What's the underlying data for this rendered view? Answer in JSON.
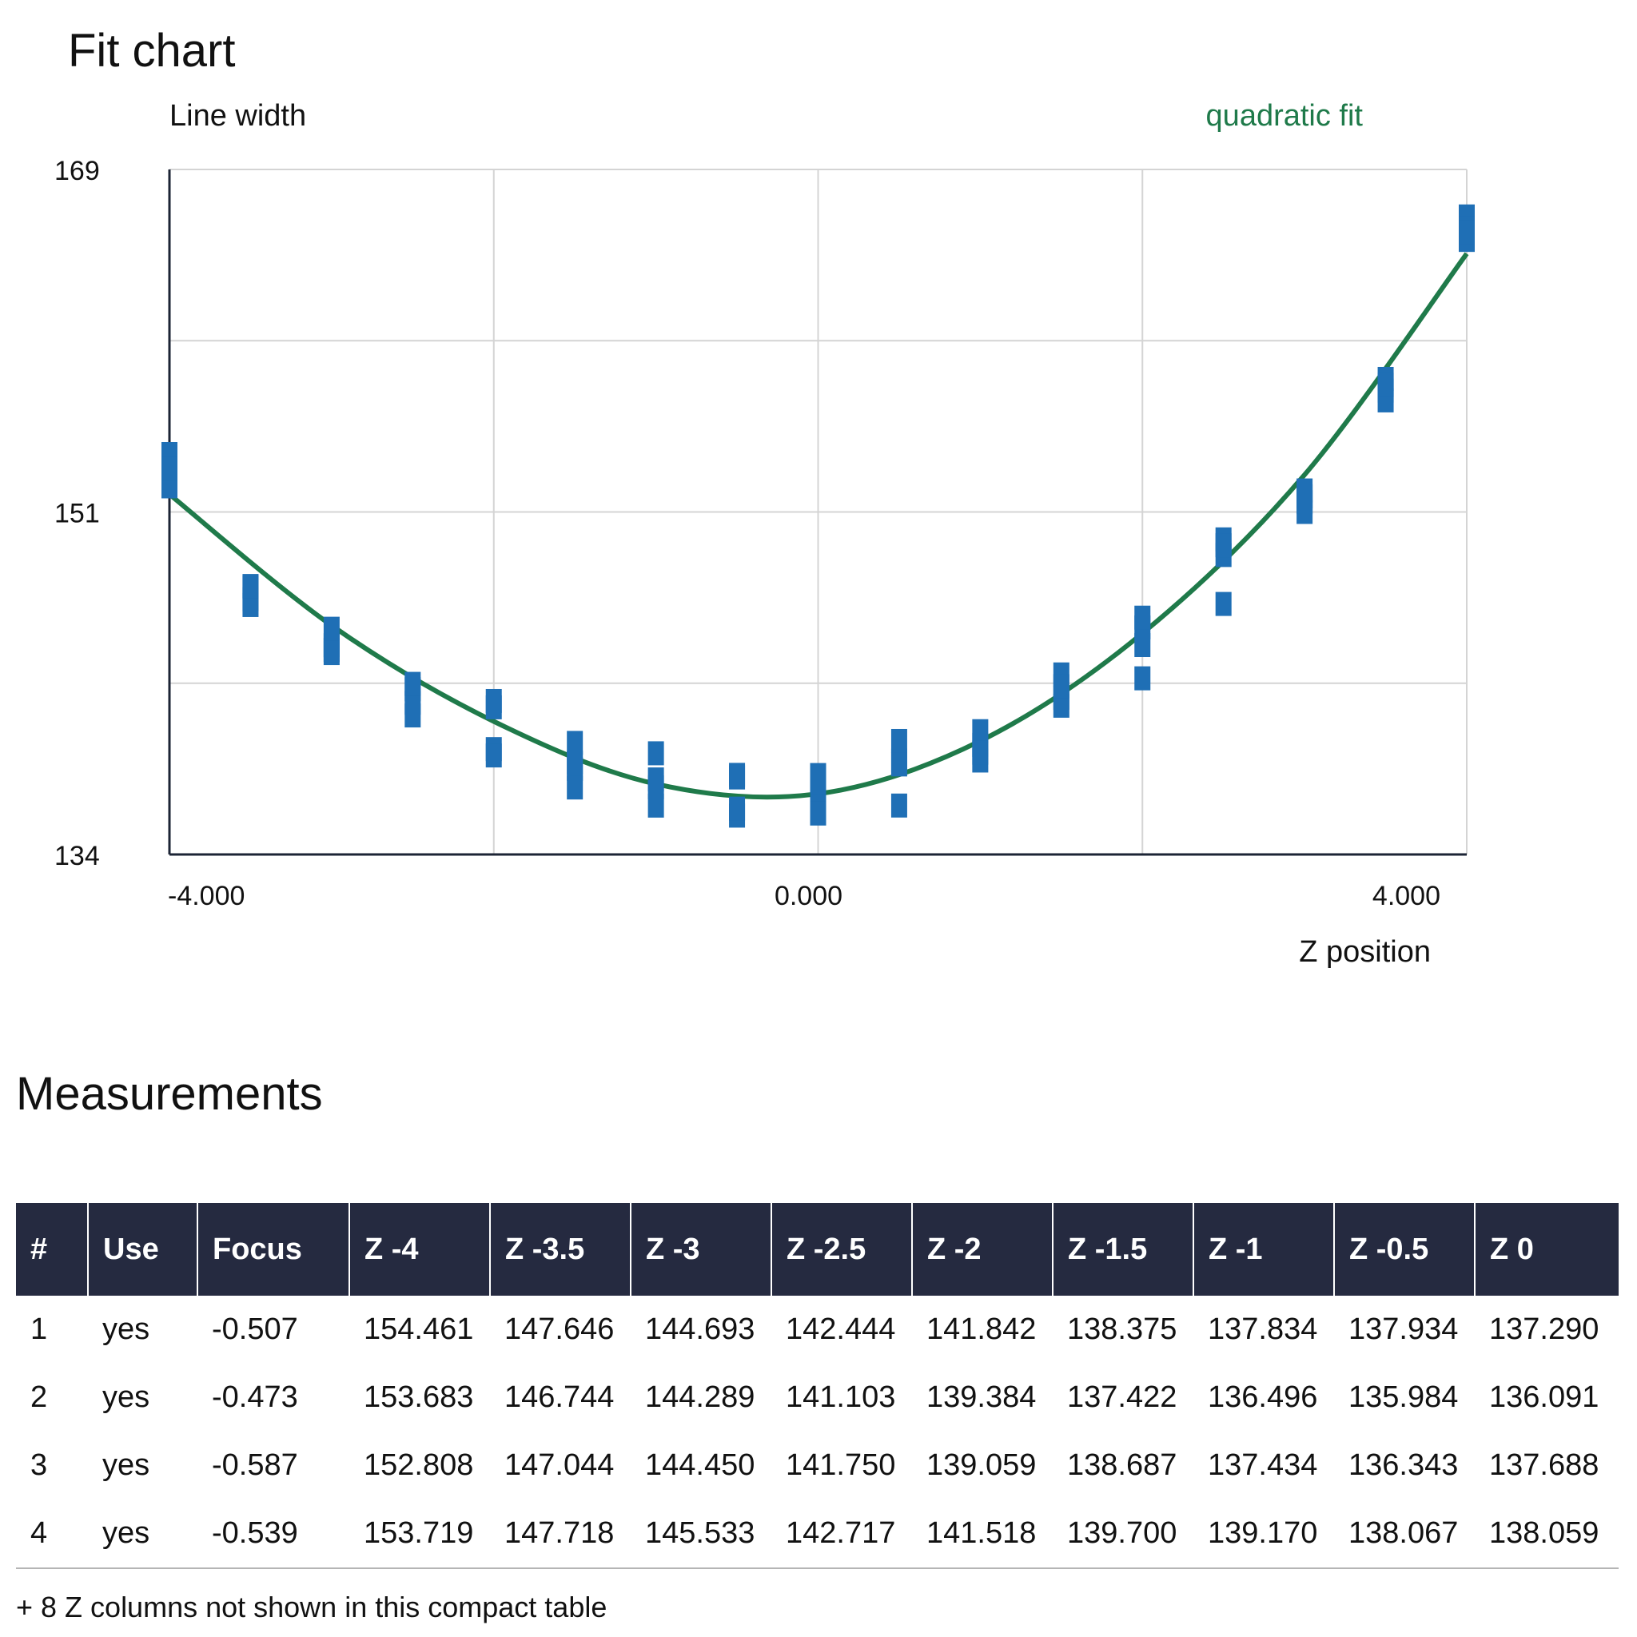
{
  "chart_title": "Fit chart",
  "chart_data": {
    "type": "scatter",
    "ylabel": "Line width",
    "xlabel": "Z position",
    "ylim": [
      134,
      169
    ],
    "xlim": [
      -4,
      4
    ],
    "y_ticks": [
      "169",
      "151",
      "134"
    ],
    "x_ticks": [
      "-4.000",
      "0.000",
      "4.000"
    ],
    "grid": true,
    "fit_label": "quadratic fit",
    "fit_color": "#1f7a4a",
    "point_color": "#1f6fb5",
    "fit_curve": {
      "x": [
        -4,
        -3,
        -2,
        -1,
        0,
        1,
        2,
        3,
        4
      ],
      "y": [
        152.4,
        145.7,
        140.8,
        137.6,
        137.1,
        139.8,
        145.3,
        153.4,
        164.7
      ]
    },
    "series": [
      {
        "x": [
          -4,
          -4,
          -4,
          -4
        ],
        "values": [
          154.461,
          153.683,
          152.808,
          153.719
        ]
      },
      {
        "x": [
          -3.5,
          -3.5,
          -3.5,
          -3.5
        ],
        "values": [
          147.646,
          146.744,
          147.044,
          147.718
        ]
      },
      {
        "x": [
          -3,
          -3,
          -3,
          -3
        ],
        "values": [
          144.693,
          144.289,
          144.45,
          145.533
        ]
      },
      {
        "x": [
          -2.5,
          -2.5,
          -2.5,
          -2.5
        ],
        "values": [
          142.444,
          141.103,
          141.75,
          142.717
        ]
      },
      {
        "x": [
          -2,
          -2,
          -2,
          -2
        ],
        "values": [
          141.842,
          139.384,
          139.059,
          141.518
        ]
      },
      {
        "x": [
          -1.5,
          -1.5,
          -1.5,
          -1.5
        ],
        "values": [
          138.375,
          137.422,
          138.687,
          139.7
        ]
      },
      {
        "x": [
          -1,
          -1,
          -1,
          -1
        ],
        "values": [
          137.834,
          136.496,
          137.434,
          139.17
        ]
      },
      {
        "x": [
          -0.5,
          -0.5,
          -0.5,
          -0.5
        ],
        "values": [
          137.934,
          135.984,
          136.343,
          138.067
        ]
      },
      {
        "x": [
          0,
          0,
          0,
          0
        ],
        "values": [
          137.29,
          136.091,
          137.688,
          138.059
        ]
      },
      {
        "x": [
          0.5,
          0.5,
          0.5,
          0.5
        ],
        "values": [
          138.8,
          136.5,
          138.6,
          139.8
        ]
      },
      {
        "x": [
          1,
          1,
          1,
          1
        ],
        "values": [
          139.6,
          138.8,
          140.3,
          139.2
        ]
      },
      {
        "x": [
          1.5,
          1.5,
          1.5,
          1.5
        ],
        "values": [
          142.0,
          141.6,
          143.2,
          142.6
        ]
      },
      {
        "x": [
          2,
          2,
          2,
          2
        ],
        "values": [
          145.6,
          144.7,
          143.0,
          146.1
        ]
      },
      {
        "x": [
          2.5,
          2.5,
          2.5,
          2.5
        ],
        "values": [
          150.1,
          149.3,
          146.8,
          149.8
        ]
      },
      {
        "x": [
          3,
          3,
          3,
          3
        ],
        "values": [
          152.6,
          152.0,
          151.5,
          152.3
        ]
      },
      {
        "x": [
          3.5,
          3.5,
          3.5,
          3.5
        ],
        "values": [
          157.7,
          158.3,
          157.2,
          158.0
        ]
      },
      {
        "x": [
          4,
          4,
          4,
          4
        ],
        "values": [
          165.4,
          166.6,
          166.0,
          165.8
        ]
      }
    ]
  },
  "table": {
    "title": "Measurements",
    "columns": [
      "#",
      "Use",
      "Focus",
      "Z -4",
      "Z -3.5",
      "Z -3",
      "Z -2.5",
      "Z -2",
      "Z -1.5",
      "Z -1",
      "Z -0.5",
      "Z 0"
    ],
    "rows": [
      [
        "1",
        "yes",
        "-0.507",
        "154.461",
        "147.646",
        "144.693",
        "142.444",
        "141.842",
        "138.375",
        "137.834",
        "137.934",
        "137.290"
      ],
      [
        "2",
        "yes",
        "-0.473",
        "153.683",
        "146.744",
        "144.289",
        "141.103",
        "139.384",
        "137.422",
        "136.496",
        "135.984",
        "136.091"
      ],
      [
        "3",
        "yes",
        "-0.587",
        "152.808",
        "147.044",
        "144.450",
        "141.750",
        "139.059",
        "138.687",
        "137.434",
        "136.343",
        "137.688"
      ],
      [
        "4",
        "yes",
        "-0.539",
        "153.719",
        "147.718",
        "145.533",
        "142.717",
        "141.518",
        "139.700",
        "139.170",
        "138.067",
        "138.059"
      ]
    ],
    "footnote": "+ 8 Z columns not shown in this compact table"
  }
}
